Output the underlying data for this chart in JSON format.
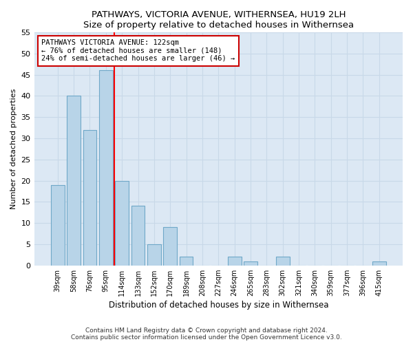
{
  "title": "PATHWAYS, VICTORIA AVENUE, WITHERNSEA, HU19 2LH",
  "subtitle": "Size of property relative to detached houses in Withernsea",
  "xlabel": "Distribution of detached houses by size in Withernsea",
  "ylabel": "Number of detached properties",
  "bar_labels": [
    "39sqm",
    "58sqm",
    "76sqm",
    "95sqm",
    "114sqm",
    "133sqm",
    "152sqm",
    "170sqm",
    "189sqm",
    "208sqm",
    "227sqm",
    "246sqm",
    "265sqm",
    "283sqm",
    "302sqm",
    "321sqm",
    "340sqm",
    "359sqm",
    "377sqm",
    "396sqm",
    "415sqm"
  ],
  "bar_values": [
    19,
    40,
    32,
    46,
    20,
    14,
    5,
    9,
    2,
    0,
    0,
    2,
    1,
    0,
    2,
    0,
    0,
    0,
    0,
    0,
    1
  ],
  "bar_color": "#b8d4e8",
  "bar_edge_color": "#6fa8c8",
  "annotation_title": "PATHWAYS VICTORIA AVENUE: 122sqm",
  "annotation_line1": "← 76% of detached houses are smaller (148)",
  "annotation_line2": "24% of semi-detached houses are larger (46) →",
  "ylim": [
    0,
    55
  ],
  "yticks": [
    0,
    5,
    10,
    15,
    20,
    25,
    30,
    35,
    40,
    45,
    50,
    55
  ],
  "footer1": "Contains HM Land Registry data © Crown copyright and database right 2024.",
  "footer2": "Contains public sector information licensed under the Open Government Licence v3.0.",
  "bg_color": "#ffffff",
  "grid_color": "#c8d8e8",
  "plot_bg_color": "#dce8f4"
}
